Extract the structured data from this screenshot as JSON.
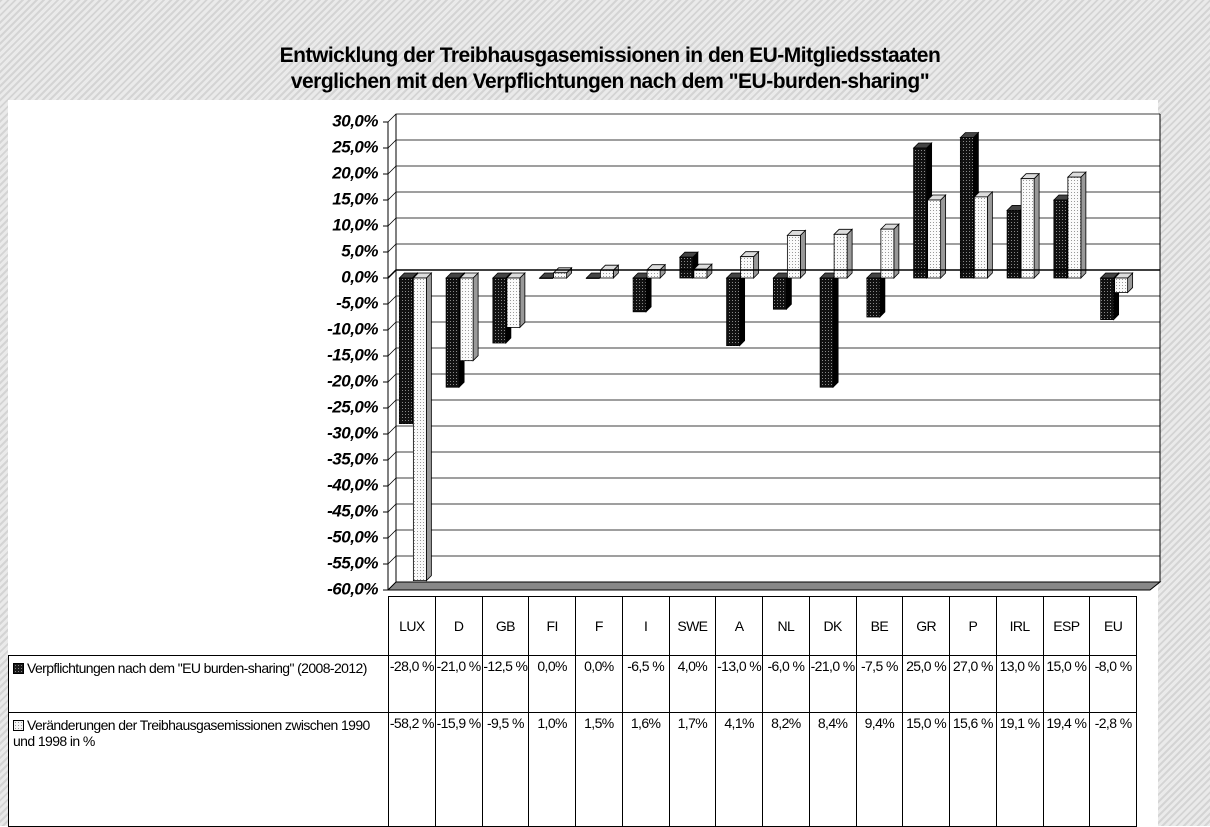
{
  "chart_data": {
    "type": "bar3d",
    "title": [
      "Entwicklung der Treibhausgasemissionen in  den EU-Mitgliedsstaaten",
      "verglichen mit den Verpflichtungen nach dem \"EU-burden-sharing\""
    ],
    "categories": [
      "LUX",
      "D",
      "GB",
      "FI",
      "F",
      "I",
      "SWE",
      "A",
      "NL",
      "DK",
      "BE",
      "GR",
      "P",
      "IRL",
      "ESP",
      "EU"
    ],
    "series": [
      {
        "name": "Verpflichtungen nach dem \"EU burden-sharing\" (2008-2012)",
        "color": "#1a1a1a",
        "values": [
          -28,
          -21,
          -12.5,
          0,
          0,
          -6.5,
          4,
          -13,
          -6,
          -21,
          -7.5,
          25,
          27,
          13,
          15,
          -8
        ],
        "value_labels": [
          "-28,0 %",
          "-21,0 %",
          "-12,5 %",
          "0,0%",
          "0,0%",
          "-6,5 %",
          "4,0%",
          "-13,0 %",
          "-6,0 %",
          "-21,0 %",
          "-7,5 %",
          "25,0 %",
          "27,0 %",
          "13,0 %",
          "15,0 %",
          "-8,0 %"
        ]
      },
      {
        "name": "Veränderungen der Treibhausgasemissionen zwischen 1990 und 1998 in %",
        "color": "#f4f4f4",
        "values": [
          -58.2,
          -15.9,
          -9.5,
          1.0,
          1.5,
          1.6,
          1.7,
          4.1,
          8.2,
          8.4,
          9.4,
          15.0,
          15.6,
          19.1,
          19.4,
          -2.8
        ],
        "value_labels": [
          "-58,2 %",
          "-15,9 %",
          "-9,5 %",
          "1,0%",
          "1,5%",
          "1,6%",
          "1,7%",
          "4,1%",
          "8,2%",
          "8,4%",
          "9,4%",
          "15,0 %",
          "15,6 %",
          "19,1 %",
          "19,4 %",
          "-2,8 %"
        ]
      }
    ],
    "ylim": [
      -60,
      30
    ],
    "yticks": [
      {
        "value": 30,
        "label": "30,0%"
      },
      {
        "value": 25,
        "label": "25,0%"
      },
      {
        "value": 20,
        "label": "20,0%"
      },
      {
        "value": 15,
        "label": "15,0%"
      },
      {
        "value": 10,
        "label": "10,0%"
      },
      {
        "value": 5,
        "label": "5,0%"
      },
      {
        "value": 0,
        "label": "0,0%"
      },
      {
        "value": -5,
        "label": "-5,0%"
      },
      {
        "value": -10,
        "label": "-10,0%"
      },
      {
        "value": -15,
        "label": "-15,0%"
      },
      {
        "value": -20,
        "label": "-20,0%"
      },
      {
        "value": -25,
        "label": "-25,0%"
      },
      {
        "value": -30,
        "label": "-30,0%"
      },
      {
        "value": -35,
        "label": "-35,0%"
      },
      {
        "value": -40,
        "label": "-40,0%"
      },
      {
        "value": -45,
        "label": "-45,0%"
      },
      {
        "value": -50,
        "label": "-50,0%"
      },
      {
        "value": -55,
        "label": "-55,0%"
      },
      {
        "value": -60,
        "label": "-60,0%"
      }
    ],
    "grid": true
  }
}
